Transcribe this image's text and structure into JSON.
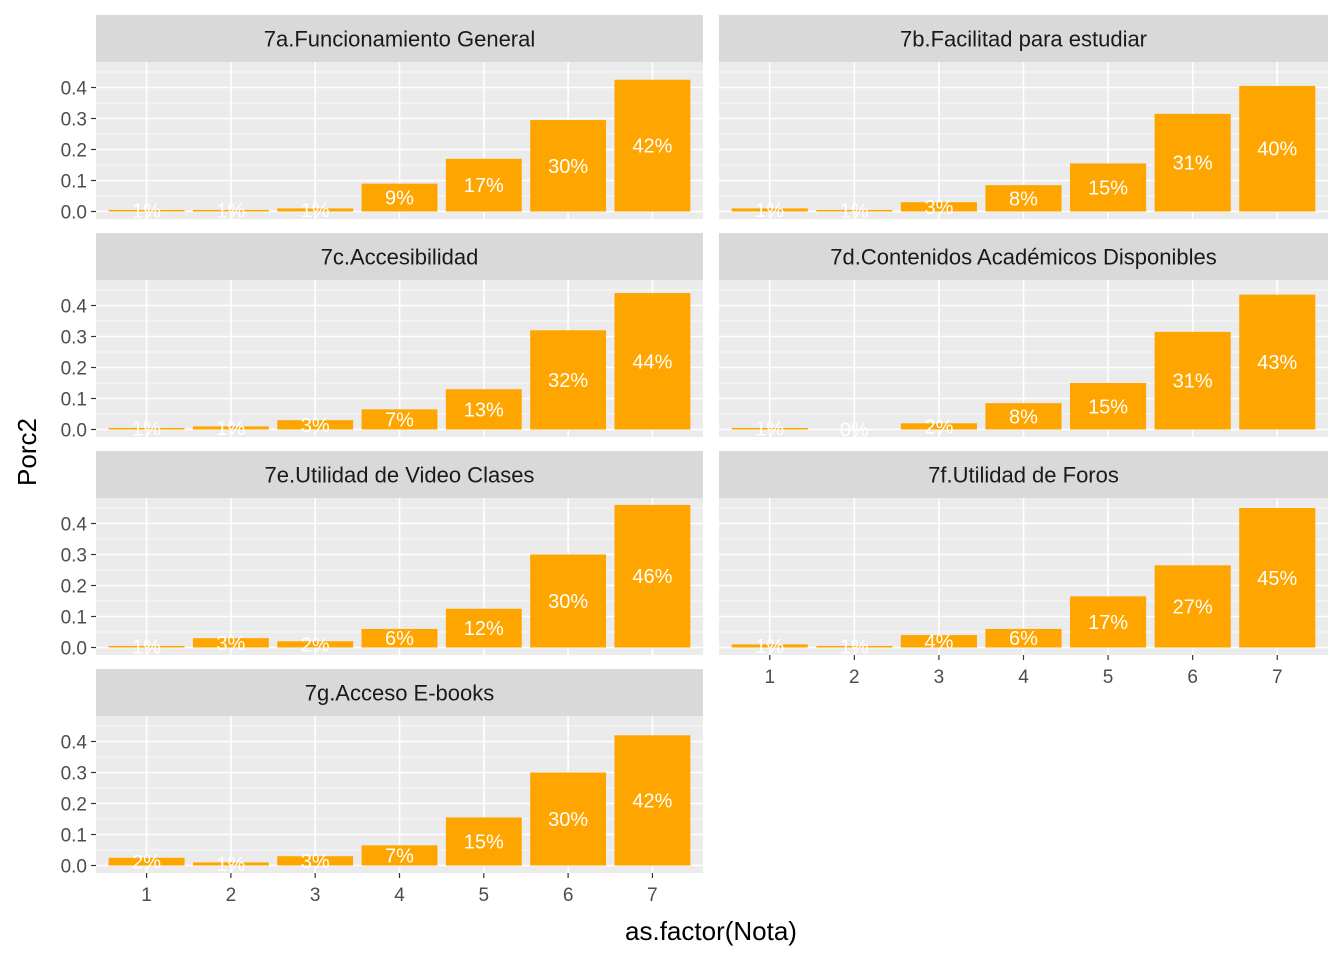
{
  "chart_data": {
    "type": "bar",
    "xlabel": "as.factor(Nota)",
    "ylabel": "Porc2",
    "ylim": [
      0,
      0.45
    ],
    "y_ticks": [
      "0.0",
      "0.1",
      "0.2",
      "0.3",
      "0.4"
    ],
    "categories": [
      "1",
      "2",
      "3",
      "4",
      "5",
      "6",
      "7"
    ],
    "bar_color": "#FFA500",
    "label_color": "#FFFFFF",
    "panel_bg": "#EBEBEB",
    "strip_bg": "#D9D9D9",
    "grid_color": "#FFFFFF",
    "grid": true,
    "layout": "facet_wrap ncol=2",
    "panels": [
      {
        "title": "7a.Funcionamiento General",
        "values": [
          0.005,
          0.005,
          0.01,
          0.09,
          0.17,
          0.295,
          0.425
        ],
        "labels": [
          "1%",
          "1%",
          "1%",
          "9%",
          "17%",
          "30%",
          "42%"
        ]
      },
      {
        "title": "7b.Facilitad para estudiar",
        "values": [
          0.01,
          0.005,
          0.03,
          0.085,
          0.155,
          0.315,
          0.405
        ],
        "labels": [
          "1%",
          "1%",
          "3%",
          "8%",
          "15%",
          "31%",
          "40%"
        ]
      },
      {
        "title": "7c.Accesibilidad",
        "values": [
          0.005,
          0.01,
          0.03,
          0.065,
          0.13,
          0.32,
          0.44
        ],
        "labels": [
          "1%",
          "1%",
          "3%",
          "7%",
          "13%",
          "32%",
          "44%"
        ]
      },
      {
        "title": "7d.Contenidos Académicos Disponibles",
        "values": [
          0.005,
          0.0,
          0.02,
          0.085,
          0.15,
          0.315,
          0.435
        ],
        "labels": [
          "1%",
          "0%",
          "2%",
          "8%",
          "15%",
          "31%",
          "43%"
        ]
      },
      {
        "title": "7e.Utilidad de Video Clases",
        "values": [
          0.005,
          0.03,
          0.02,
          0.06,
          0.125,
          0.3,
          0.46
        ],
        "labels": [
          "1%",
          "3%",
          "2%",
          "6%",
          "12%",
          "30%",
          "46%"
        ]
      },
      {
        "title": "7f.Utilidad de Foros",
        "values": [
          0.01,
          0.005,
          0.04,
          0.06,
          0.165,
          0.265,
          0.45
        ],
        "labels": [
          "1%",
          "1%",
          "4%",
          "6%",
          "17%",
          "27%",
          "45%"
        ]
      },
      {
        "title": "7g.Acceso E-books",
        "values": [
          0.025,
          0.01,
          0.03,
          0.065,
          0.155,
          0.3,
          0.42
        ],
        "labels": [
          "2%",
          "1%",
          "3%",
          "7%",
          "15%",
          "30%",
          "42%"
        ]
      }
    ]
  }
}
